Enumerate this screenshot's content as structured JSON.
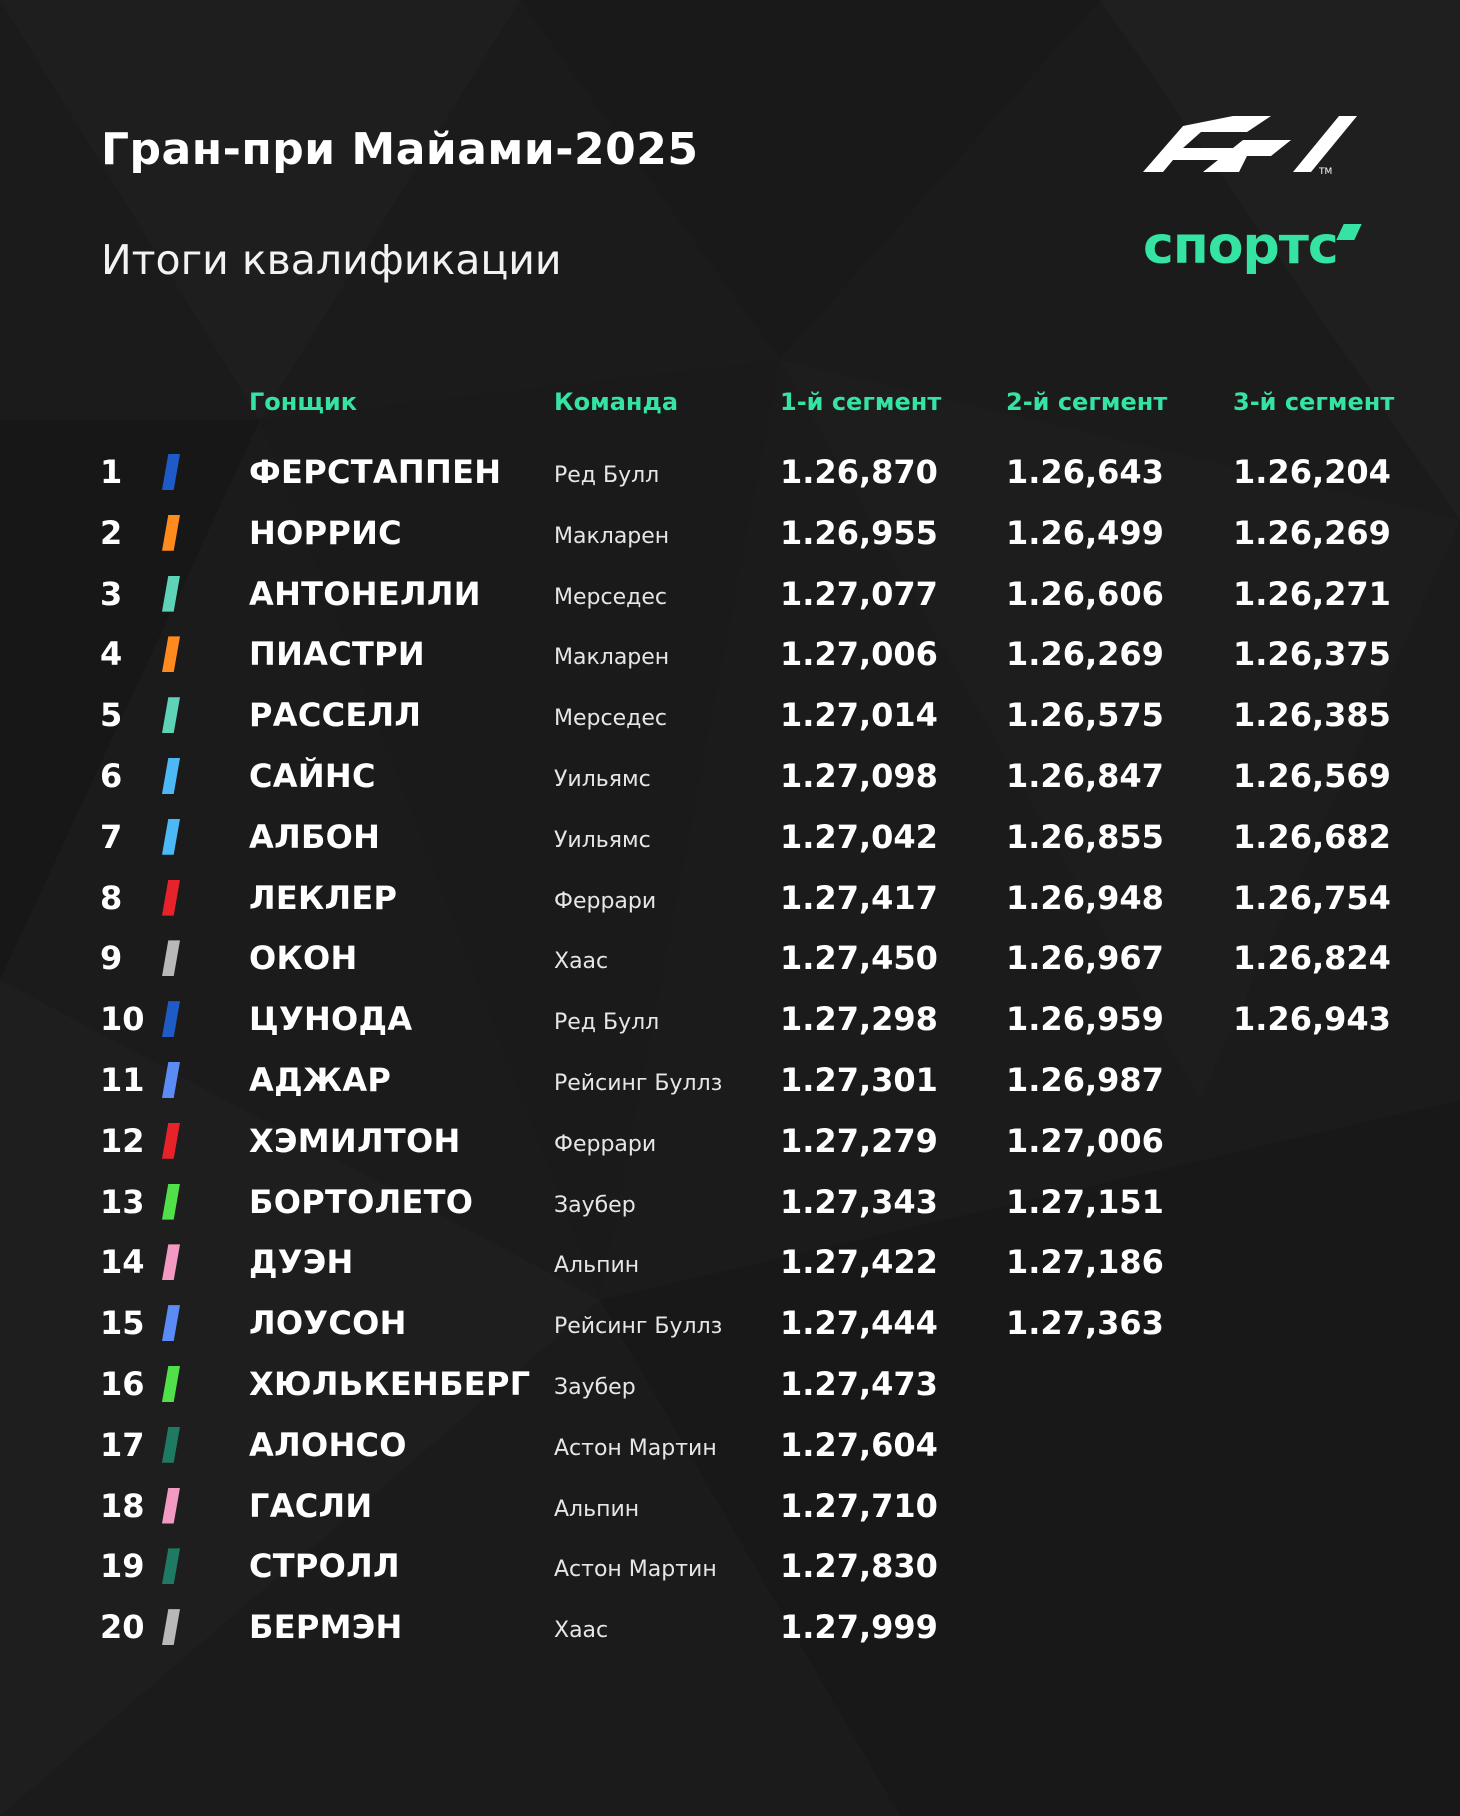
{
  "title": "Гран-при Майами-2025",
  "subtitle": "Итоги квалификации",
  "logos": {
    "f1": "f1-logo",
    "sports_text": "спортс",
    "sports_color": "#35e3a3"
  },
  "headers": {
    "driver": "Гонщик",
    "team": "Команда",
    "q1": "1-й сегмент",
    "q2": "2-й сегмент",
    "q3": "3-й сегмент"
  },
  "colors": {
    "accent": "#35e3a3",
    "background": "#1b1b1b"
  },
  "rows": [
    {
      "pos": "1",
      "driver": "ФЕРСТАППЕН",
      "team": "Ред Булл",
      "q1": "1.26,870",
      "q2": "1.26,643",
      "q3": "1.26,204",
      "color": "#1e5bc6"
    },
    {
      "pos": "2",
      "driver": "НОРРИС",
      "team": "Макларен",
      "q1": "1.26,955",
      "q2": "1.26,499",
      "q3": "1.26,269",
      "color": "#ff8a1e"
    },
    {
      "pos": "3",
      "driver": "АНТОНЕЛЛИ",
      "team": "Мерседес",
      "q1": "1.27,077",
      "q2": "1.26,606",
      "q3": "1.26,271",
      "color": "#5ed3b8"
    },
    {
      "pos": "4",
      "driver": "ПИАСТРИ",
      "team": "Макларен",
      "q1": "1.27,006",
      "q2": "1.26,269",
      "q3": "1.26,375",
      "color": "#ff8a1e"
    },
    {
      "pos": "5",
      "driver": "РАССЕЛЛ",
      "team": "Мерседес",
      "q1": "1.27,014",
      "q2": "1.26,575",
      "q3": "1.26,385",
      "color": "#5ed3b8"
    },
    {
      "pos": "6",
      "driver": "САЙНС",
      "team": "Уильямс",
      "q1": "1.27,098",
      "q2": "1.26,847",
      "q3": "1.26,569",
      "color": "#4cb8f5"
    },
    {
      "pos": "7",
      "driver": "АЛБОН",
      "team": "Уильямс",
      "q1": "1.27,042",
      "q2": "1.26,855",
      "q3": "1.26,682",
      "color": "#4cb8f5"
    },
    {
      "pos": "8",
      "driver": "ЛЕКЛЕР",
      "team": "Феррари",
      "q1": "1.27,417",
      "q2": "1.26,948",
      "q3": "1.26,754",
      "color": "#e8222a"
    },
    {
      "pos": "9",
      "driver": "ОКОН",
      "team": "Хаас",
      "q1": "1.27,450",
      "q2": "1.26,967",
      "q3": "1.26,824",
      "color": "#b8b8b8"
    },
    {
      "pos": "10",
      "driver": "ЦУНОДА",
      "team": "Ред Булл",
      "q1": "1.27,298",
      "q2": "1.26,959",
      "q3": "1.26,943",
      "color": "#1e5bc6"
    },
    {
      "pos": "11",
      "driver": "АДЖАР",
      "team": "Рейсинг Буллз",
      "q1": "1.27,301",
      "q2": "1.26,987",
      "q3": "",
      "color": "#5b8cf5"
    },
    {
      "pos": "12",
      "driver": "ХЭМИЛТОН",
      "team": "Феррари",
      "q1": "1.27,279",
      "q2": "1.27,006",
      "q3": "",
      "color": "#e8222a"
    },
    {
      "pos": "13",
      "driver": "БОРТОЛЕТО",
      "team": "Заубер",
      "q1": "1.27,343",
      "q2": "1.27,151",
      "q3": "",
      "color": "#4fe04a"
    },
    {
      "pos": "14",
      "driver": "ДУЭН",
      "team": "Альпин",
      "q1": "1.27,422",
      "q2": "1.27,186",
      "q3": "",
      "color": "#f29ac2"
    },
    {
      "pos": "15",
      "driver": "ЛОУСОН",
      "team": "Рейсинг Буллз",
      "q1": "1.27,444",
      "q2": "1.27,363",
      "q3": "",
      "color": "#5b8cf5"
    },
    {
      "pos": "16",
      "driver": "ХЮЛЬКЕНБЕРГ",
      "team": "Заубер",
      "q1": "1.27,473",
      "q2": "",
      "q3": "",
      "color": "#4fe04a"
    },
    {
      "pos": "17",
      "driver": "АЛОНСО",
      "team": "Астон Мартин",
      "q1": "1.27,604",
      "q2": "",
      "q3": "",
      "color": "#1f7a63"
    },
    {
      "pos": "18",
      "driver": "ГАСЛИ",
      "team": "Альпин",
      "q1": "1.27,710",
      "q2": "",
      "q3": "",
      "color": "#f29ac2"
    },
    {
      "pos": "19",
      "driver": "СТРОЛЛ",
      "team": "Астон Мартин",
      "q1": "1.27,830",
      "q2": "",
      "q3": "",
      "color": "#1f7a63"
    },
    {
      "pos": "20",
      "driver": "БЕРМЭН",
      "team": "Хаас",
      "q1": "1.27,999",
      "q2": "",
      "q3": "",
      "color": "#b8b8b8"
    }
  ]
}
